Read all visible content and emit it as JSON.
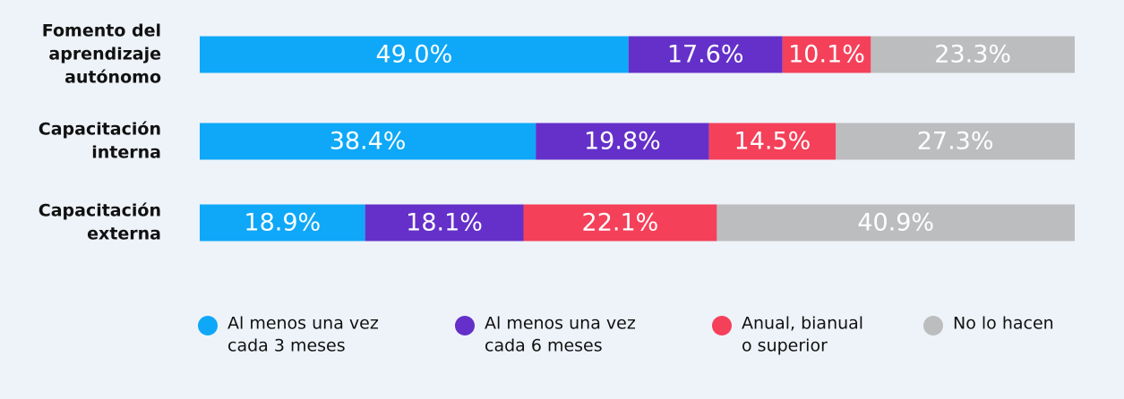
{
  "chart_data": {
    "type": "stacked-bar-horizontal",
    "categories": [
      [
        "Fomento del",
        "aprendizaje",
        "autónomo"
      ],
      [
        "Capacitación",
        "interna"
      ],
      [
        "Capacitación",
        "externa"
      ]
    ],
    "xlim": [
      0,
      100
    ],
    "series": [
      {
        "name": [
          "Al menos una vez",
          "cada 3 meses"
        ],
        "color": "#0fa8f8",
        "values": [
          49.0,
          38.4,
          18.9
        ],
        "value_labels": [
          "49.0%",
          "38.4%",
          "18.9%"
        ]
      },
      {
        "name": [
          "Al menos una vez",
          "cada 6 meses"
        ],
        "color": "#6430c9",
        "values": [
          17.6,
          19.8,
          18.1
        ],
        "value_labels": [
          "17.6%",
          "19.8%",
          "18.1%"
        ]
      },
      {
        "name": [
          "Anual, bianual",
          "o superior"
        ],
        "color": "#f5405a",
        "values": [
          10.1,
          14.5,
          22.1
        ],
        "value_labels": [
          "10.1%",
          "14.5%",
          "22.1%"
        ]
      },
      {
        "name": [
          "No lo hacen"
        ],
        "color": "#bcbdbf",
        "values": [
          23.3,
          27.3,
          40.9
        ],
        "value_labels": [
          "23.3%",
          "27.3%",
          "40.9%"
        ]
      }
    ]
  }
}
